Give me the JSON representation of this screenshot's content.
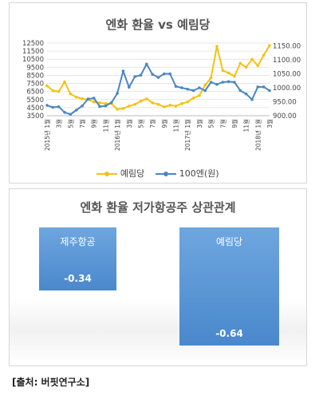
{
  "chart_data": [
    {
      "type": "line",
      "title": "엔화 환율 vs 예림당",
      "x_labels": [
        "2015년 1월",
        "2월",
        "3월",
        "4월",
        "5월",
        "6월",
        "7월",
        "8월",
        "9월",
        "10월",
        "11월",
        "12월",
        "2016년 1월",
        "2월",
        "3월",
        "4월",
        "5월",
        "6월",
        "7월",
        "8월",
        "9월",
        "10월",
        "11월",
        "12월",
        "2017년 1월",
        "2월",
        "3월",
        "4월",
        "5월",
        "6월",
        "7월",
        "8월",
        "9월",
        "10월",
        "11월",
        "12월",
        "2018년 1월",
        "2월",
        "3월"
      ],
      "y_left_ticks": [
        "12500",
        "11500",
        "10500",
        "9500",
        "8500",
        "7500",
        "6500",
        "5500",
        "4500",
        "3500"
      ],
      "y_right_ticks": [
        "1150.00",
        "1100.00",
        "1050.00",
        "1000.00",
        "950.00",
        "900.00"
      ],
      "ylim_left": [
        3500,
        12500
      ],
      "ylim_right": [
        900,
        1160
      ],
      "series": [
        {
          "name": "예림당",
          "axis": "left",
          "color": "#f5c211",
          "values": [
            7200,
            6600,
            6500,
            7700,
            6200,
            5800,
            5600,
            5500,
            5200,
            5100,
            5000,
            5000,
            4300,
            4400,
            4700,
            4900,
            5300,
            5600,
            5100,
            4900,
            4600,
            4800,
            4700,
            5000,
            5200,
            5700,
            6000,
            7300,
            8200,
            12100,
            9100,
            8800,
            8400,
            10000,
            9500,
            10500,
            9700,
            11000,
            12200
          ]
        },
        {
          "name": "100엔(원)",
          "axis": "right",
          "color": "#4a86c4",
          "values": [
            937,
            930,
            932,
            912,
            905,
            920,
            935,
            960,
            963,
            933,
            935,
            947,
            980,
            1060,
            1002,
            1040,
            1045,
            1085,
            1048,
            1037,
            1050,
            1050,
            1005,
            1000,
            995,
            990,
            1000,
            990,
            1020,
            1012,
            1020,
            1022,
            1020,
            990,
            978,
            958,
            1003,
            1003,
            990
          ]
        }
      ],
      "legend": "bottom"
    },
    {
      "type": "bar",
      "title": "엔화 환율 저가항공주 상관관계",
      "categories": [
        "제주항공",
        "예림당"
      ],
      "values": [
        -0.34,
        -0.64
      ],
      "labels": [
        "-0.34",
        "-0.64"
      ],
      "color": "#5b9bd5"
    }
  ],
  "source": "[출처: 버핏연구소]"
}
